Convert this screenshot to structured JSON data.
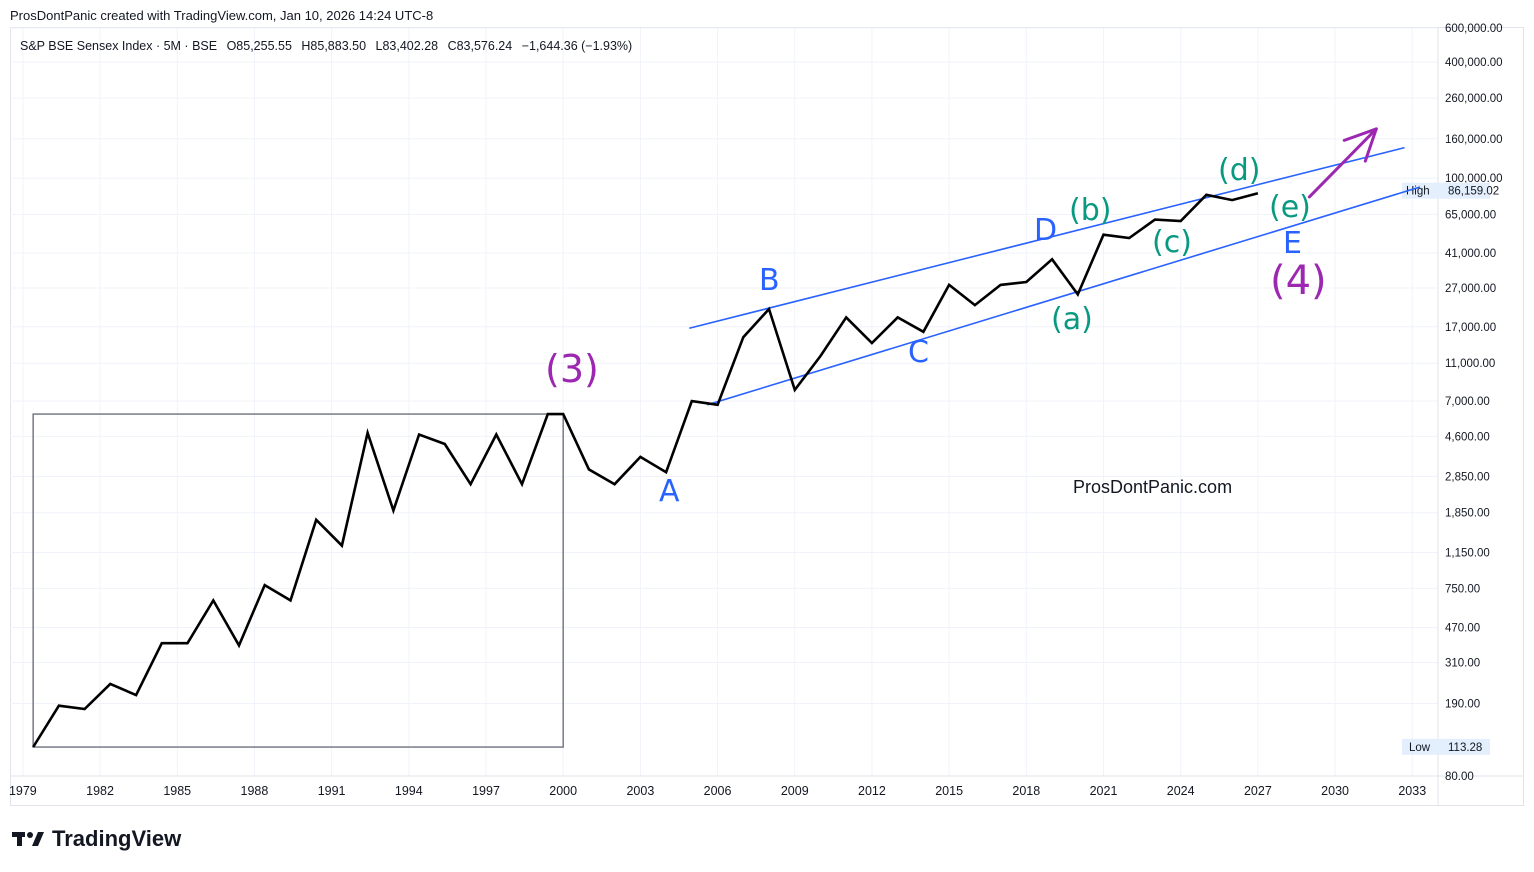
{
  "credit": "ProsDontPanic created with TradingView.com, Jan 10, 2026 14:24 UTC-8",
  "legend": {
    "symbol": "S&P BSE Sensex Index · 5M · BSE",
    "open": "O85,255.55",
    "high": "H85,883.50",
    "low": "L83,402.28",
    "close": "C83,576.24",
    "change": "−1,644.36 (−1.93%)"
  },
  "watermark": "ProsDontPanic.com",
  "brand": "TradingView",
  "colors": {
    "price_line": "#000000",
    "channel": "#2962ff",
    "wave_blue": "#2962ff",
    "wave_teal": "#089981",
    "wave_purple": "#9c27b0",
    "box": "#787b86"
  },
  "wave_labels": {
    "w3": "(3)",
    "A": "A",
    "B": "B",
    "C": "C",
    "D": "D",
    "E": "E",
    "w4": "(4)",
    "a": "(a)",
    "b": "(b)",
    "c": "(c)",
    "d": "(d)",
    "e": "(e)"
  },
  "chart_data": {
    "type": "line",
    "title": "S&P BSE Sensex Index · 5M · BSE",
    "xlabel": "",
    "ylabel": "",
    "y_scale": "log",
    "ylim": [
      80,
      600000
    ],
    "xlim": [
      1978.5,
      2034
    ],
    "x_ticks": [
      "1979",
      "1982",
      "1985",
      "1988",
      "1991",
      "1994",
      "1997",
      "2000",
      "2003",
      "2006",
      "2009",
      "2012",
      "2015",
      "2018",
      "2021",
      "2024",
      "2027",
      "2030",
      "2033"
    ],
    "y_ticks": [
      "600,000.00",
      "400,000.00",
      "260,000.00",
      "160,000.00",
      "100,000.00",
      "65,000.00",
      "41,000.00",
      "27,000.00",
      "17,000.00",
      "11,000.00",
      "7,000.00",
      "4,600.00",
      "2,850.00",
      "1,850.00",
      "1,150.00",
      "750.00",
      "470.00",
      "310.00",
      "190.00",
      "80.00"
    ],
    "high_label": "High",
    "high_value": "86,159.02",
    "low_label": "Low",
    "low_value": "113.28",
    "x": [
      1979.4,
      1980.4,
      1981.4,
      1982.4,
      1983.4,
      1984.4,
      1985.4,
      1986.4,
      1987.4,
      1988.4,
      1989.4,
      1990.4,
      1991.4,
      1992.4,
      1993.4,
      1994.4,
      1995.4,
      1996.4,
      1997.4,
      1998.4,
      1999.4,
      2000.0,
      2001.0,
      2002.0,
      2003.0,
      2004.0,
      2005.0,
      2006.0,
      2007.0,
      2008.0,
      2009.0,
      2010.0,
      2011.0,
      2012.0,
      2013.0,
      2014.0,
      2015.0,
      2016.0,
      2017.0,
      2018.0,
      2019.0,
      2020.0,
      2021.0,
      2022.0,
      2023.0,
      2024.0,
      2025.0,
      2026.0,
      2027.0
    ],
    "values": [
      113,
      185,
      178,
      240,
      210,
      390,
      390,
      650,
      380,
      780,
      650,
      1700,
      1250,
      4800,
      1900,
      4700,
      4200,
      2600,
      4700,
      2600,
      6000,
      6000,
      3100,
      2600,
      3600,
      3000,
      7000,
      6700,
      15000,
      21000,
      8000,
      12000,
      19000,
      14000,
      19000,
      16000,
      28000,
      22000,
      28000,
      29000,
      38000,
      25000,
      51000,
      49000,
      61000,
      60000,
      82000,
      77000,
      83576
    ],
    "box": {
      "x": [
        1979.4,
        2000.0
      ],
      "y": [
        113,
        6000
      ]
    },
    "channel_upper": {
      "x": [
        2004.9,
        2032.7
      ],
      "y": [
        16700,
        144000
      ]
    },
    "channel_lower": {
      "x": [
        2005.6,
        2033.3
      ],
      "y": [
        6700,
        90000
      ]
    },
    "arrow": {
      "x": [
        2029.0,
        2031.6
      ],
      "y": [
        80000,
        180000
      ]
    }
  }
}
